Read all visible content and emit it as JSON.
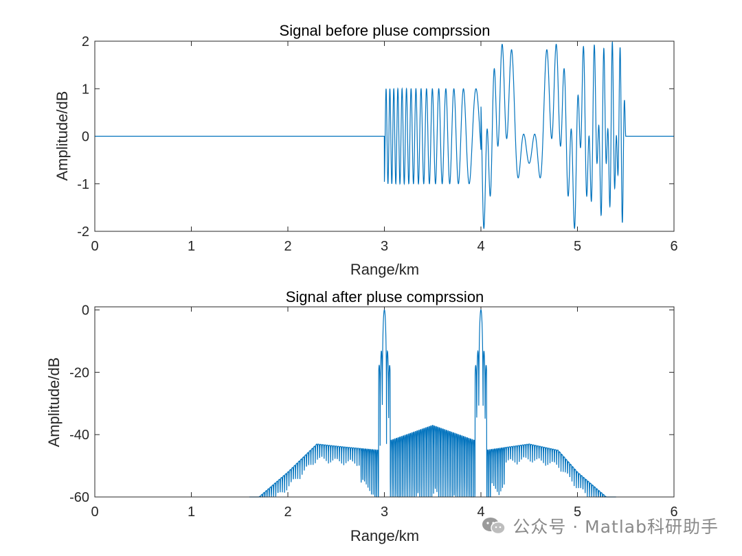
{
  "chart_data": [
    {
      "type": "line",
      "title": "Signal before pluse comprssion",
      "xlabel": "Range/km",
      "ylabel": "Amplitude/dB",
      "xlim": [
        0,
        6
      ],
      "ylim": [
        -2,
        2
      ],
      "xticks": [
        0,
        1,
        2,
        3,
        4,
        5,
        6
      ],
      "yticks": [
        -2,
        -1,
        0,
        1,
        2
      ],
      "line_color": "#0072BD",
      "series_note": "sum of two LFM chirps (unit amplitude) occupying 3.0–5.5 km and 4.0–5.5 km; zero elsewhere",
      "x": [
        0,
        2.99,
        3.0,
        3.5,
        4.0,
        4.05,
        4.35,
        4.5,
        4.75,
        5.0,
        5.5,
        5.51,
        6
      ],
      "y": [
        0,
        0,
        0.3,
        1.0,
        -2.0,
        1.85,
        1.82,
        0.5,
        -0.5,
        1.0,
        0.3,
        0,
        0
      ]
    },
    {
      "type": "line",
      "title": "Signal after pluse comprssion",
      "xlabel": "Range/km",
      "ylabel": "Amplitude/dB",
      "xlim": [
        0,
        6
      ],
      "ylim": [
        -60,
        1
      ],
      "xticks": [
        0,
        1,
        2,
        3,
        4,
        5,
        6
      ],
      "yticks": [
        -60,
        -40,
        -20,
        0
      ],
      "line_color": "#0072BD",
      "series_note": "matched-filter output magnitude in dB; main lobes at 3 km and 4 km",
      "x": [
        1.7,
        2.0,
        2.3,
        2.6,
        2.95,
        3.0,
        3.05,
        3.5,
        3.95,
        4.0,
        4.05,
        4.5,
        4.8,
        5.0,
        5.3
      ],
      "y": [
        -60,
        -52,
        -43,
        -44,
        -45,
        0,
        -42,
        -37,
        -42,
        0,
        -45,
        -43,
        -45,
        -52,
        -60
      ]
    }
  ],
  "watermark": {
    "text": "公众号 · Matlab科研助手",
    "icon": "wechat-icon"
  }
}
